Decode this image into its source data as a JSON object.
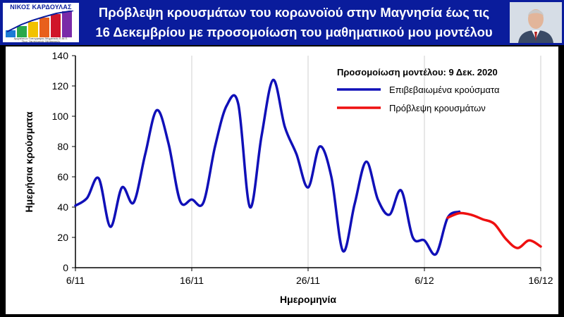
{
  "header": {
    "title_line1": "Πρόβλεψη κρουσμάτων του κορωνοϊού στην Μαγνησία έως τις",
    "title_line2": "16 Δεκεμβρίου με προσομοίωση του μαθηματικού μου μοντέλου",
    "logo_name": "ΝΙΚΟΣ ΚΑΡΔΟΥΛΑΣ",
    "logo_sub1": "Αρχιτέκτων Τοπογράφος Μηχανικός Ε.Μ.Π.",
    "logo_sub2": "Τέως Υφυπουργός Μεταφορών",
    "logo_icon": "bar-chart-logo-icon",
    "photo_icon": "portrait-photo-icon",
    "background_color": "#0a1c9c"
  },
  "chart_data": {
    "type": "line",
    "annotation": "Προσομοίωση μοντέλου: 9 Δεκ. 2020",
    "xlabel": "Ημερομηνία",
    "ylabel": "Ημερήσια κρούσματα",
    "xticks": [
      "6/11",
      "16/11",
      "26/11",
      "6/12",
      "16/12"
    ],
    "xlim": [
      "6/11",
      "16/12"
    ],
    "ylim": [
      0,
      140
    ],
    "yticks": [
      0,
      20,
      40,
      60,
      80,
      100,
      120,
      140
    ],
    "grid": "vertical",
    "legend_position": "top-right",
    "series": [
      {
        "name": "Επιβεβαιωμένα κρούσματα",
        "color": "#1010b8",
        "x": [
          "6/11",
          "7/11",
          "8/11",
          "9/11",
          "10/11",
          "11/11",
          "12/11",
          "13/11",
          "14/11",
          "15/11",
          "16/11",
          "17/11",
          "18/11",
          "19/11",
          "20/11",
          "21/11",
          "22/11",
          "23/11",
          "24/11",
          "25/11",
          "26/11",
          "27/11",
          "28/11",
          "29/11",
          "30/11",
          "1/12",
          "2/12",
          "3/12",
          "4/12",
          "5/12",
          "6/12",
          "7/12",
          "8/12",
          "9/12"
        ],
        "y": [
          41,
          46,
          59,
          27,
          53,
          43,
          75,
          104,
          82,
          44,
          45,
          43,
          80,
          107,
          108,
          40,
          87,
          124,
          93,
          75,
          53,
          80,
          60,
          11,
          42,
          70,
          45,
          35,
          51,
          20,
          18,
          9,
          33,
          37
        ]
      },
      {
        "name": "Πρόβλεψη κρουσμάτων",
        "color": "#ee1010",
        "x": [
          "8/12",
          "9/12",
          "10/12",
          "11/12",
          "12/12",
          "13/12",
          "14/12",
          "15/12",
          "16/12"
        ],
        "y": [
          33,
          36,
          35,
          32,
          29,
          19,
          13,
          18,
          14
        ]
      }
    ]
  }
}
